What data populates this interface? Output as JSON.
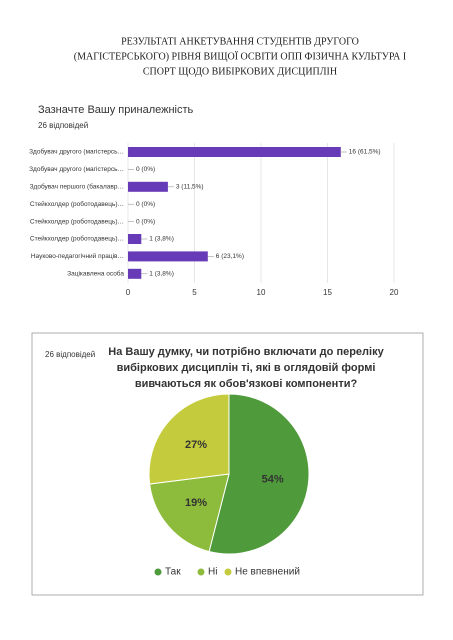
{
  "title": [
    "РЕЗУЛЬТАТІ АНКЕТУВАННЯ СТУДЕНТІВ ДРУГОГО",
    "(МАГІСТЕРСЬКОГО) РІВНЯ ВИЩОЇ ОСВІТИ ОПП ФІЗИЧНА КУЛЬТУРА І",
    "СПОРТ ЩОДО ВИБІРКОВИХ ДИСЦИПЛІН"
  ],
  "chart_data": [
    {
      "type": "bar",
      "orientation": "horizontal",
      "title": "Зазначте Вашу приналежність",
      "subtitle": "26 відповідей",
      "categories": [
        "Здобувач другого (магістерсь…",
        "Здобувач другого (магістерсь…",
        "Здобувач першого (бакалавр…",
        "Стейкхолдер (роботодавець)…",
        "Стейкхолдер (роботодавець)…",
        "Стейкхолдер (роботодавець)…",
        "Науково-педагогічний праців…",
        "Зацікавлена особа"
      ],
      "values": [
        16,
        0,
        3,
        0,
        0,
        1,
        6,
        1
      ],
      "value_labels": [
        "16 (61,5%)",
        "0 (0%)",
        "3 (11,5%)",
        "0 (0%)",
        "0 (0%)",
        "1 (3,8%)",
        "6 (23,1%)",
        "1 (3,8%)"
      ],
      "color": "#673ab7",
      "xlim": [
        0,
        20
      ],
      "xticks": [
        0,
        5,
        10,
        15,
        20
      ],
      "grid": true
    },
    {
      "type": "pie",
      "title": [
        "На Вашу думку, чи потрібно включати до переліку",
        "вибіркових дисциплін ті, які в оглядовій формі",
        "вивчаються як обов'язкові компоненти?"
      ],
      "subtitle": "26 відповідей",
      "categories": [
        "Так",
        "Ні",
        "Не впевнений"
      ],
      "values": [
        54,
        19,
        27
      ],
      "value_labels": [
        "54%",
        "19%",
        "27%"
      ],
      "colors": [
        "#4f9a3a",
        "#8dbb3c",
        "#c4cc3e"
      ],
      "legend": "bottom"
    }
  ]
}
